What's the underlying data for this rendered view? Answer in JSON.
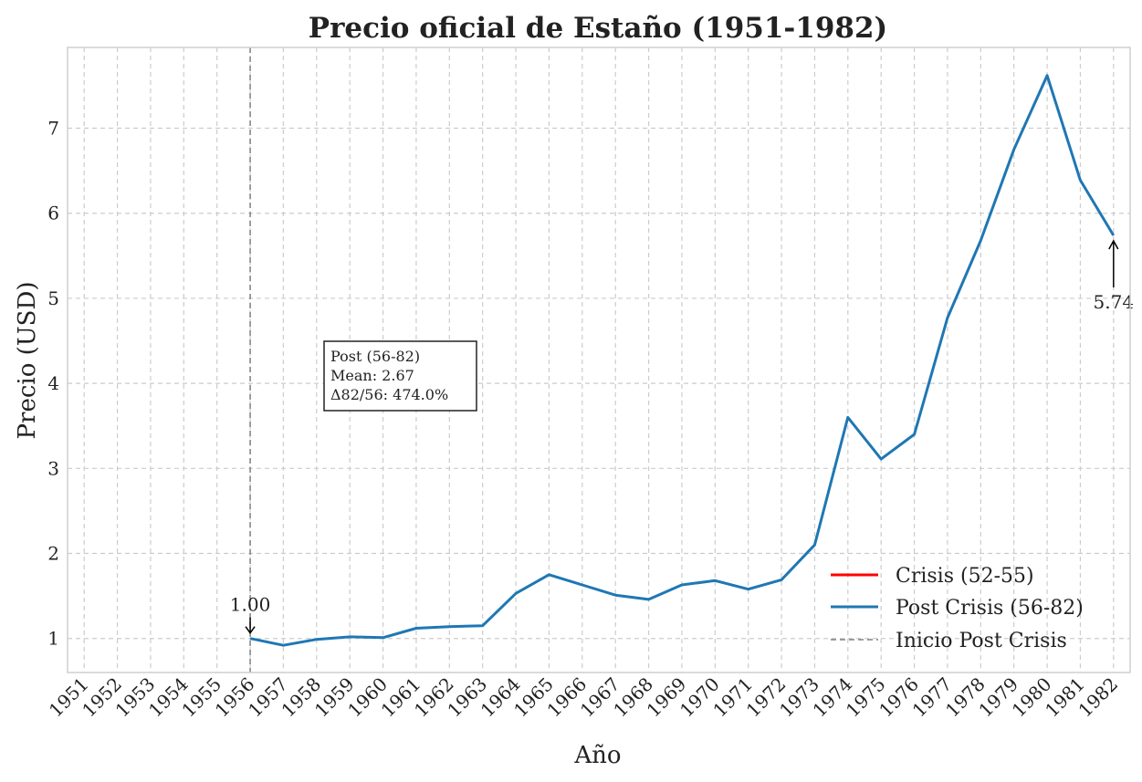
{
  "chart_data": {
    "type": "line",
    "title": "Precio oficial de Estaño (1951-1982)",
    "xlabel": "Año",
    "ylabel": "Precio (USD)",
    "xlim": [
      1950.5,
      1982.5
    ],
    "ylim": [
      0.6,
      7.95
    ],
    "xticks": [
      1951,
      1952,
      1953,
      1954,
      1955,
      1956,
      1957,
      1958,
      1959,
      1960,
      1961,
      1962,
      1963,
      1964,
      1965,
      1966,
      1967,
      1968,
      1969,
      1970,
      1971,
      1972,
      1973,
      1974,
      1975,
      1976,
      1977,
      1978,
      1979,
      1980,
      1981,
      1982
    ],
    "yticks": [
      1,
      2,
      3,
      4,
      5,
      6,
      7
    ],
    "grid": true,
    "legend_position": "lower-right",
    "series": [
      {
        "name": "Crisis (52-55)",
        "color": "#ff0000",
        "x": [],
        "y": []
      },
      {
        "name": "Post Crisis (56-82)",
        "color": "#1f77b4",
        "x": [
          1956,
          1957,
          1958,
          1959,
          1960,
          1961,
          1962,
          1963,
          1964,
          1965,
          1966,
          1967,
          1968,
          1969,
          1970,
          1971,
          1972,
          1973,
          1974,
          1975,
          1976,
          1977,
          1978,
          1979,
          1980,
          1981,
          1982
        ],
        "y": [
          1.0,
          0.92,
          0.99,
          1.02,
          1.01,
          1.12,
          1.14,
          1.15,
          1.53,
          1.75,
          1.63,
          1.51,
          1.46,
          1.63,
          1.68,
          1.58,
          1.69,
          2.1,
          3.6,
          3.11,
          3.4,
          4.77,
          5.68,
          6.75,
          7.62,
          6.39,
          5.74
        ]
      }
    ],
    "vline": {
      "x": 1956,
      "name": "Inicio Post Crisis",
      "color": "#808080"
    },
    "annotations": [
      {
        "x": 1956,
        "y": 1.0,
        "text": "1.00",
        "arrow": "down"
      },
      {
        "x": 1982,
        "y": 5.74,
        "text": "5.74",
        "arrow": "up"
      }
    ],
    "stats_box": {
      "lines": [
        "Post (56-82)",
        "Mean: 2.67",
        "Δ82/56: 474.0%"
      ]
    }
  }
}
